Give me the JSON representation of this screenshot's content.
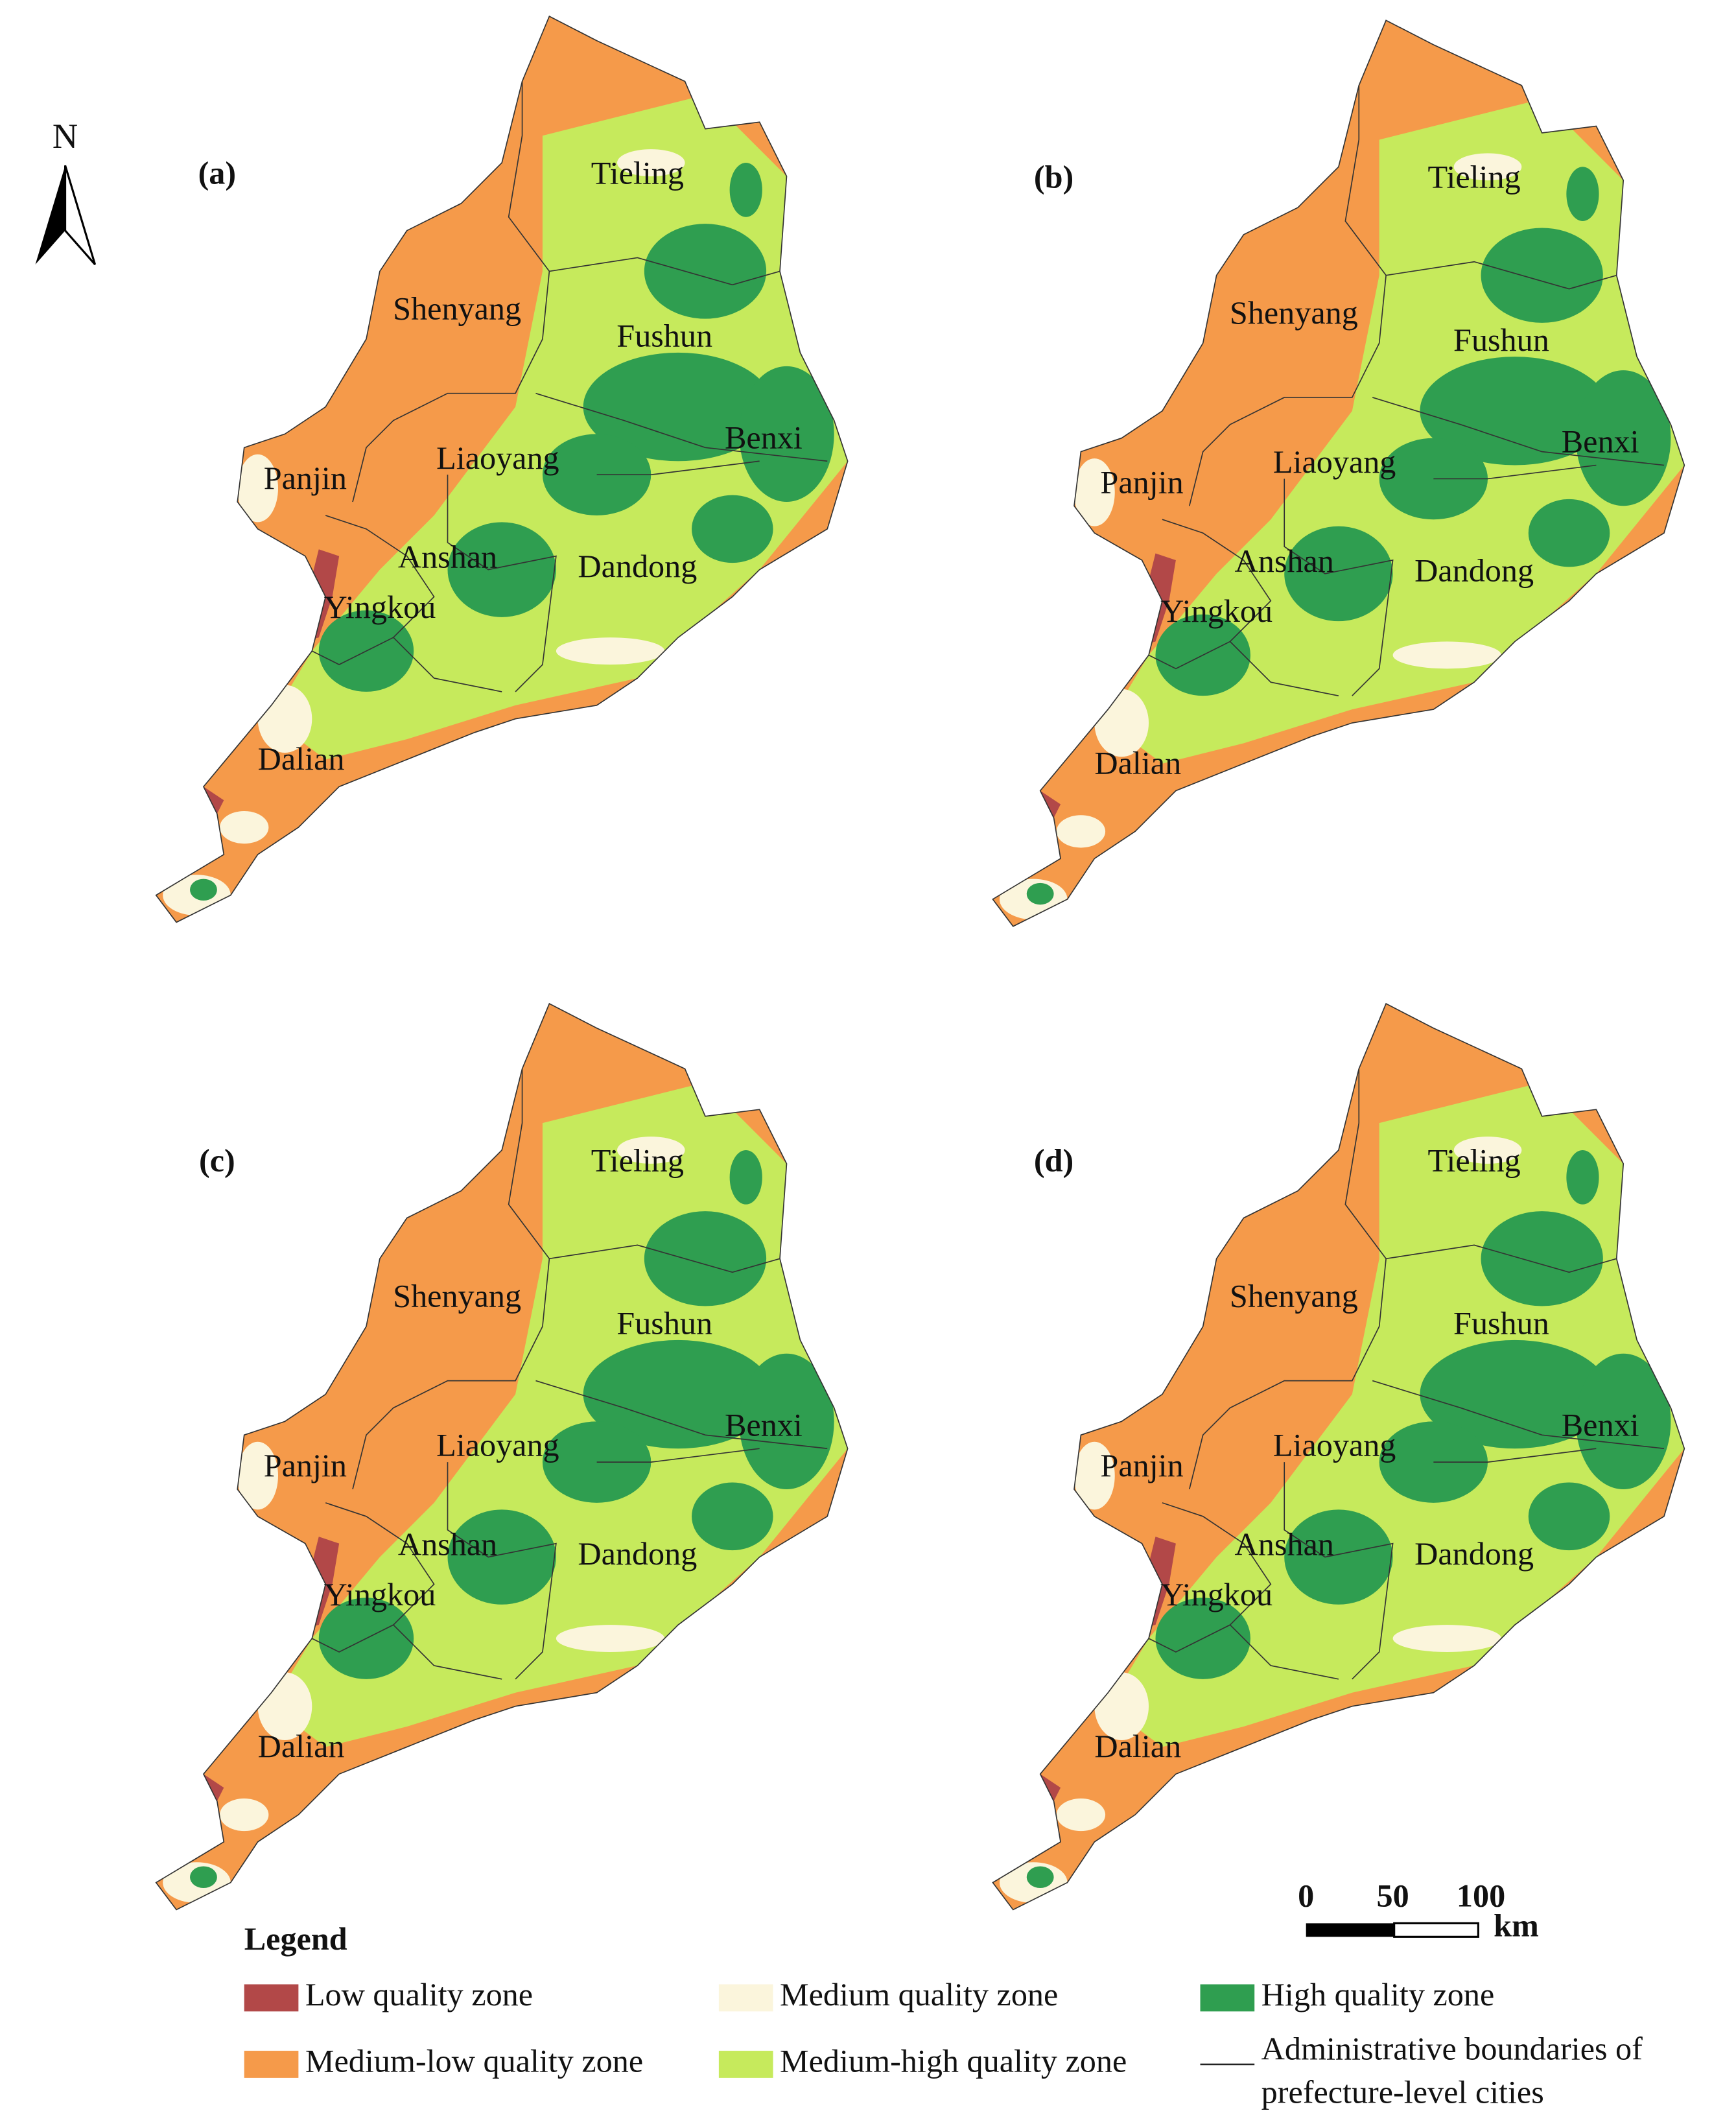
{
  "north_label": "N",
  "panels": [
    {
      "label": "(a)"
    },
    {
      "label": "(b)"
    },
    {
      "label": "(c)"
    },
    {
      "label": "(d)"
    }
  ],
  "cities": [
    "Tieling",
    "Shenyang",
    "Fushun",
    "Benxi",
    "Liaoyang",
    "Panjin",
    "Anshan",
    "Dandong",
    "Yingkou",
    "Dalian"
  ],
  "legend": {
    "title": "Legend",
    "items": [
      {
        "label": "Low quality zone",
        "color": "#b24848"
      },
      {
        "label": "Medium quality zone",
        "color": "#fbf5dc"
      },
      {
        "label": "High quality zone",
        "color": "#2f9e50"
      },
      {
        "label": "Medium-low quality zone",
        "color": "#f59a4a"
      },
      {
        "label": "Medium-high quality zone",
        "color": "#c6ea5c"
      }
    ],
    "boundary": {
      "label_lines": [
        "Administrative boundaries of",
        "prefecture-level cities"
      ]
    }
  },
  "scale_bar": {
    "ticks": [
      0,
      50,
      100
    ],
    "unit": "km"
  }
}
